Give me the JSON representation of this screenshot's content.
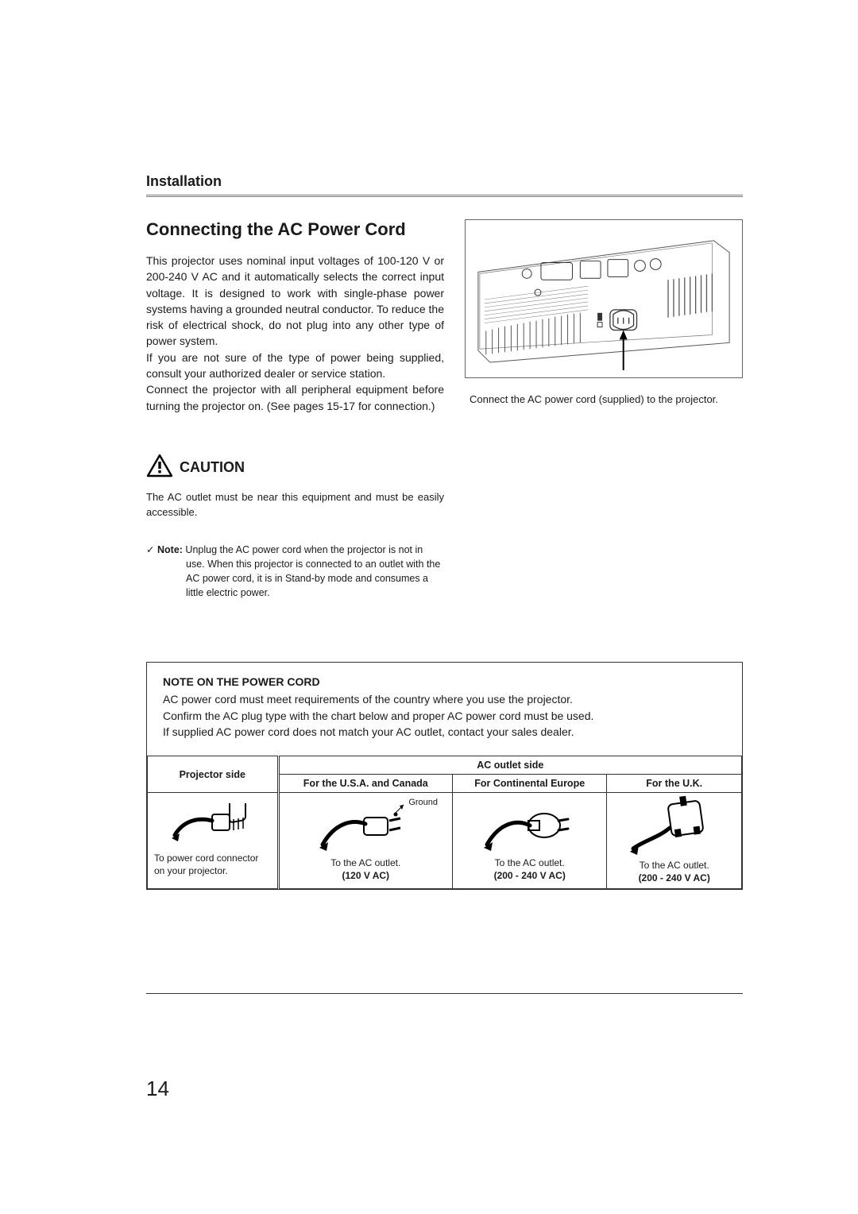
{
  "section_label": "Installation",
  "heading": "Connecting the AC Power Cord",
  "body_paragraph": "This projector uses nominal input voltages of 100-120 V or 200-240 V AC and it automatically selects the correct input voltage.  It is designed to work with single-phase power systems having a grounded neutral conductor.  To reduce the risk of electrical shock, do not plug into any other type of power system.\nIf you are not sure of the type of power being supplied, consult your authorized dealer or service station.\nConnect the projector with all peripheral equipment before turning the projector on. (See pages 15-17 for connection.)",
  "caution_label": "CAUTION",
  "caution_text": "The AC outlet must be near this equipment and must be easily accessible.",
  "note_check": "✓",
  "note_label": "Note:",
  "note_first_line": " Unplug the AC power cord when the projector is not in",
  "note_body": "use.  When this projector is connected to an outlet with the AC power cord, it is in Stand-by mode and consumes a little electric power.",
  "illustration_caption": "Connect the AC power cord (supplied) to the projector.",
  "cord_box": {
    "title": "NOTE ON THE POWER CORD",
    "text": "AC power cord must meet requirements of the country where you use the projector.\nConfirm the AC plug type with the chart below and proper AC power cord must be used.\nIf supplied AC power cord does not match your AC outlet, contact your sales dealer.",
    "header_left": "Projector side",
    "header_right": "AC outlet side",
    "cols": [
      "For the U.S.A. and Canada",
      "For Continental Europe",
      "For the U.K."
    ],
    "ground_label": "Ground",
    "projector_caption": "To power cord connector on your projector.",
    "captions": [
      {
        "line1": "To the AC outlet.",
        "line2": "(120 V AC)"
      },
      {
        "line1": "To the AC outlet.",
        "line2": "(200 - 240 V AC)"
      },
      {
        "line1": "To the AC outlet.",
        "line2": "(200 - 240 V AC)"
      }
    ]
  },
  "page_number": "14",
  "colors": {
    "rule": "#5a8a8a",
    "text": "#1a1a1a",
    "border": "#333333"
  }
}
